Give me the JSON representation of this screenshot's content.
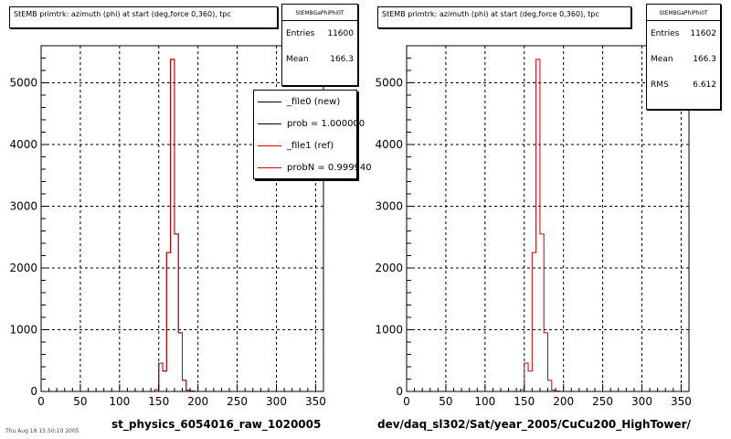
{
  "footer_text": "Thu Aug 18 15:50:10 2005",
  "legend": {
    "entries": [
      {
        "label": "_file0 (new)",
        "color": "#000000"
      },
      {
        "label": "prob = 1.000000",
        "color": "#000000"
      },
      {
        "label": "_file1 (ref)",
        "color": "#cc0000"
      },
      {
        "label": "probN = 0.999940",
        "color": "#cc0000"
      }
    ]
  },
  "panels": [
    {
      "title": "StEMB primtrk: azimuth (phi) at start (deg,force 0,360), tpc",
      "stats": {
        "name": "StEMBGaPhiPhi0T",
        "rows": [
          {
            "label": "Entries",
            "value": "11600"
          },
          {
            "label": "Mean",
            "value": "166.3"
          }
        ]
      },
      "subtitle": "st_physics_6054016_raw_1020005"
    },
    {
      "title": "StEMB primtrk: azimuth (phi) at start (deg,force 0,360), tpc",
      "stats": {
        "name": "StEMBGaPhiPhi0T",
        "rows": [
          {
            "label": "Entries",
            "value": "11602"
          },
          {
            "label": "Mean",
            "value": "166.3"
          },
          {
            "label": "RMS",
            "value": "6.612"
          }
        ]
      },
      "subtitle": "dev/daq_sl302/Sat/year_2005/CuCu200_HighTower/"
    }
  ],
  "chart_data": [
    {
      "type": "histogram",
      "title": "StEMB primtrk: azimuth (phi) at start (deg,force 0,360), tpc",
      "xlabel": "st_physics_6054016_raw_1020005",
      "xlim": [
        0,
        360
      ],
      "ylim": [
        0,
        5600
      ],
      "xticks": [
        0,
        50,
        100,
        150,
        200,
        250,
        300,
        350
      ],
      "yticks": [
        0,
        1000,
        2000,
        3000,
        4000,
        5000
      ],
      "grid": true,
      "bin_width": 5,
      "series": [
        {
          "name": "_file0 (new)",
          "color": "#000000",
          "x": [
            145,
            150,
            155,
            160,
            165,
            170,
            175,
            180,
            185,
            190
          ],
          "values": [
            30,
            460,
            330,
            2250,
            5380,
            2550,
            950,
            180,
            20,
            5
          ]
        },
        {
          "name": "_file1 (ref)",
          "color": "#cc0000",
          "x": [
            145,
            150,
            155,
            160,
            165,
            170,
            175,
            180,
            185,
            190
          ],
          "values": [
            30,
            460,
            330,
            2250,
            5380,
            2550,
            950,
            180,
            20,
            5
          ]
        }
      ]
    },
    {
      "type": "histogram",
      "title": "StEMB primtrk: azimuth (phi) at start (deg,force 0,360), tpc",
      "xlabel": "dev/daq_sl302/Sat/year_2005/CuCu200_HighTower/",
      "xlim": [
        0,
        360
      ],
      "ylim": [
        0,
        5600
      ],
      "xticks": [
        0,
        50,
        100,
        150,
        200,
        250,
        300,
        350
      ],
      "yticks": [
        0,
        1000,
        2000,
        3000,
        4000,
        5000
      ],
      "grid": true,
      "bin_width": 5,
      "series": [
        {
          "color": "#cc0000",
          "x": [
            145,
            150,
            155,
            160,
            165,
            170,
            175,
            180,
            185,
            190
          ],
          "values": [
            30,
            460,
            330,
            2250,
            5380,
            2550,
            950,
            180,
            20,
            5
          ]
        }
      ]
    }
  ]
}
